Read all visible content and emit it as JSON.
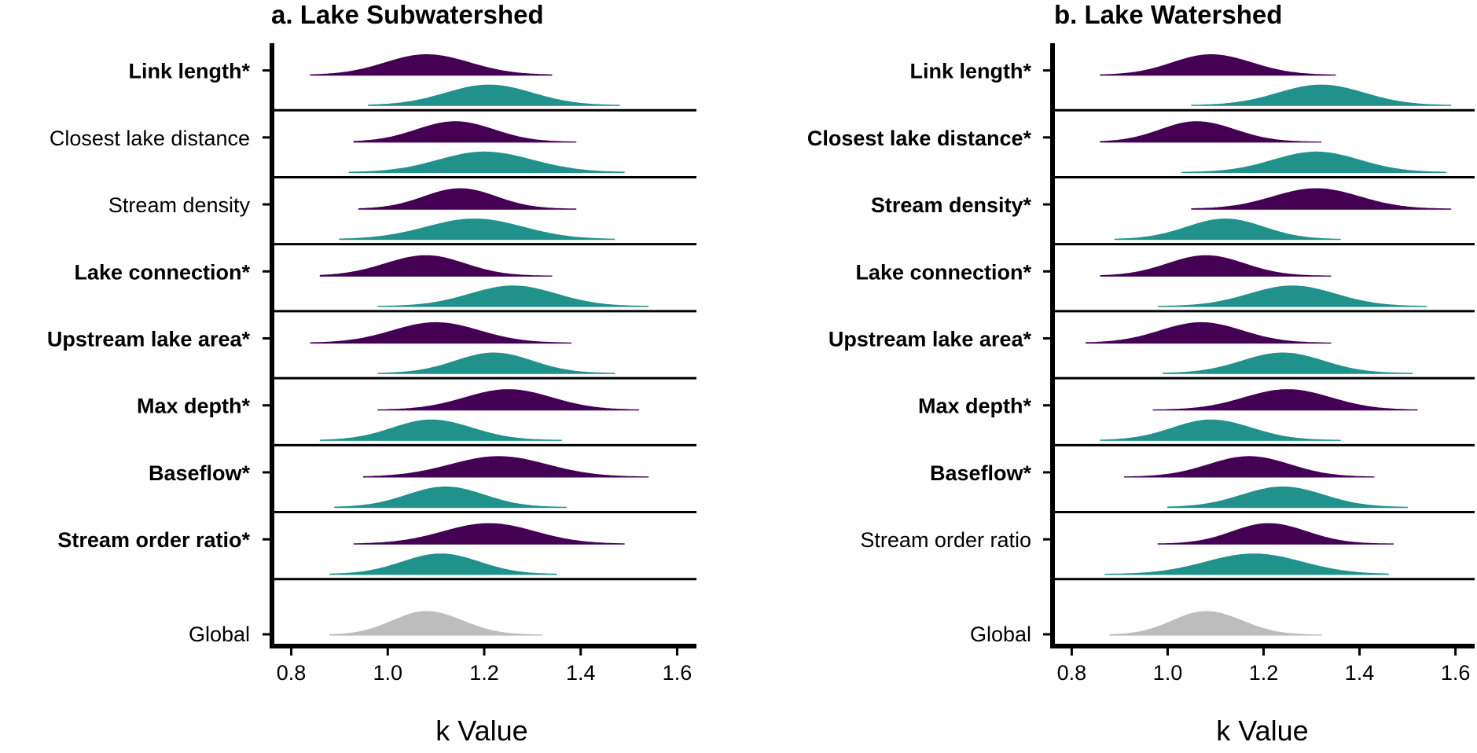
{
  "colors": {
    "purple": "#440154",
    "teal": "#21918c",
    "gray": "#bdbdbd",
    "axis": "#000000"
  },
  "chart_data": [
    {
      "type": "ridgeline",
      "title": "a. Lake Subwatershed",
      "xlabel": "k Value",
      "xlim": [
        0.76,
        1.64
      ],
      "xticks": [
        "0.8",
        "1.0",
        "1.2",
        "1.4",
        "1.6"
      ],
      "categories": [
        {
          "label": "Link length*",
          "bold": true,
          "densities": [
            {
              "color": "purple",
              "min": 0.84,
              "max": 1.34,
              "peak": 1.08,
              "sd_left": 0.085,
              "sd_right": 0.09
            },
            {
              "color": "teal",
              "min": 0.96,
              "max": 1.48,
              "peak": 1.21,
              "sd_left": 0.09,
              "sd_right": 0.09
            }
          ]
        },
        {
          "label": "Closest lake distance",
          "bold": false,
          "densities": [
            {
              "color": "purple",
              "min": 0.93,
              "max": 1.39,
              "peak": 1.14,
              "sd_left": 0.08,
              "sd_right": 0.08
            },
            {
              "color": "teal",
              "min": 0.92,
              "max": 1.49,
              "peak": 1.2,
              "sd_left": 0.095,
              "sd_right": 0.1
            }
          ]
        },
        {
          "label": "Stream density",
          "bold": false,
          "densities": [
            {
              "color": "purple",
              "min": 0.94,
              "max": 1.39,
              "peak": 1.15,
              "sd_left": 0.075,
              "sd_right": 0.075
            },
            {
              "color": "teal",
              "min": 0.9,
              "max": 1.47,
              "peak": 1.18,
              "sd_left": 0.1,
              "sd_right": 0.1
            }
          ]
        },
        {
          "label": "Lake connection*",
          "bold": true,
          "densities": [
            {
              "color": "purple",
              "min": 0.86,
              "max": 1.34,
              "peak": 1.08,
              "sd_left": 0.085,
              "sd_right": 0.08
            },
            {
              "color": "teal",
              "min": 0.98,
              "max": 1.54,
              "peak": 1.26,
              "sd_left": 0.09,
              "sd_right": 0.09
            }
          ]
        },
        {
          "label": "Upstream lake area*",
          "bold": true,
          "densities": [
            {
              "color": "purple",
              "min": 0.84,
              "max": 1.38,
              "peak": 1.1,
              "sd_left": 0.09,
              "sd_right": 0.09
            },
            {
              "color": "teal",
              "min": 0.98,
              "max": 1.47,
              "peak": 1.22,
              "sd_left": 0.08,
              "sd_right": 0.08
            }
          ]
        },
        {
          "label": "Max depth*",
          "bold": true,
          "densities": [
            {
              "color": "purple",
              "min": 0.98,
              "max": 1.52,
              "peak": 1.25,
              "sd_left": 0.09,
              "sd_right": 0.09
            },
            {
              "color": "teal",
              "min": 0.86,
              "max": 1.36,
              "peak": 1.09,
              "sd_left": 0.08,
              "sd_right": 0.085
            }
          ]
        },
        {
          "label": "Baseflow*",
          "bold": true,
          "densities": [
            {
              "color": "purple",
              "min": 0.95,
              "max": 1.54,
              "peak": 1.23,
              "sd_left": 0.1,
              "sd_right": 0.1
            },
            {
              "color": "teal",
              "min": 0.89,
              "max": 1.37,
              "peak": 1.12,
              "sd_left": 0.08,
              "sd_right": 0.08
            }
          ]
        },
        {
          "label": "Stream order ratio*",
          "bold": true,
          "densities": [
            {
              "color": "purple",
              "min": 0.93,
              "max": 1.49,
              "peak": 1.21,
              "sd_left": 0.095,
              "sd_right": 0.095
            },
            {
              "color": "teal",
              "min": 0.88,
              "max": 1.35,
              "peak": 1.11,
              "sd_left": 0.08,
              "sd_right": 0.08
            }
          ]
        },
        {
          "label": "Global",
          "bold": false,
          "densities": [
            {
              "color": "gray",
              "min": 0.88,
              "max": 1.32,
              "peak": 1.08,
              "sd_left": 0.07,
              "sd_right": 0.075
            }
          ]
        }
      ]
    },
    {
      "type": "ridgeline",
      "title": "b. Lake Watershed",
      "xlabel": "k Value",
      "xlim": [
        0.76,
        1.64
      ],
      "xticks": [
        "0.8",
        "1.0",
        "1.2",
        "1.4",
        "1.6"
      ],
      "categories": [
        {
          "label": "Link length*",
          "bold": true,
          "densities": [
            {
              "color": "purple",
              "min": 0.86,
              "max": 1.35,
              "peak": 1.09,
              "sd_left": 0.08,
              "sd_right": 0.085
            },
            {
              "color": "teal",
              "min": 1.05,
              "max": 1.59,
              "peak": 1.32,
              "sd_left": 0.09,
              "sd_right": 0.09
            }
          ]
        },
        {
          "label": "Closest lake distance*",
          "bold": true,
          "densities": [
            {
              "color": "purple",
              "min": 0.86,
              "max": 1.32,
              "peak": 1.06,
              "sd_left": 0.075,
              "sd_right": 0.08
            },
            {
              "color": "teal",
              "min": 1.03,
              "max": 1.58,
              "peak": 1.31,
              "sd_left": 0.09,
              "sd_right": 0.09
            }
          ]
        },
        {
          "label": "Stream density*",
          "bold": true,
          "densities": [
            {
              "color": "purple",
              "min": 1.05,
              "max": 1.59,
              "peak": 1.31,
              "sd_left": 0.09,
              "sd_right": 0.09
            },
            {
              "color": "teal",
              "min": 0.89,
              "max": 1.36,
              "peak": 1.12,
              "sd_left": 0.08,
              "sd_right": 0.08
            }
          ]
        },
        {
          "label": "Lake connection*",
          "bold": true,
          "densities": [
            {
              "color": "purple",
              "min": 0.86,
              "max": 1.34,
              "peak": 1.08,
              "sd_left": 0.08,
              "sd_right": 0.08
            },
            {
              "color": "teal",
              "min": 0.98,
              "max": 1.54,
              "peak": 1.26,
              "sd_left": 0.09,
              "sd_right": 0.09
            }
          ]
        },
        {
          "label": "Upstream lake area*",
          "bold": true,
          "densities": [
            {
              "color": "purple",
              "min": 0.83,
              "max": 1.34,
              "peak": 1.07,
              "sd_left": 0.085,
              "sd_right": 0.085
            },
            {
              "color": "teal",
              "min": 0.99,
              "max": 1.51,
              "peak": 1.24,
              "sd_left": 0.085,
              "sd_right": 0.085
            }
          ]
        },
        {
          "label": "Max depth*",
          "bold": true,
          "densities": [
            {
              "color": "purple",
              "min": 0.97,
              "max": 1.52,
              "peak": 1.25,
              "sd_left": 0.09,
              "sd_right": 0.09
            },
            {
              "color": "teal",
              "min": 0.86,
              "max": 1.36,
              "peak": 1.09,
              "sd_left": 0.08,
              "sd_right": 0.085
            }
          ]
        },
        {
          "label": "Baseflow*",
          "bold": true,
          "densities": [
            {
              "color": "purple",
              "min": 0.91,
              "max": 1.43,
              "peak": 1.17,
              "sd_left": 0.085,
              "sd_right": 0.085
            },
            {
              "color": "teal",
              "min": 1.0,
              "max": 1.5,
              "peak": 1.24,
              "sd_left": 0.085,
              "sd_right": 0.085
            }
          ]
        },
        {
          "label": "Stream order ratio",
          "bold": false,
          "densities": [
            {
              "color": "purple",
              "min": 0.98,
              "max": 1.47,
              "peak": 1.21,
              "sd_left": 0.075,
              "sd_right": 0.08
            },
            {
              "color": "teal",
              "min": 0.87,
              "max": 1.46,
              "peak": 1.18,
              "sd_left": 0.1,
              "sd_right": 0.1
            }
          ]
        },
        {
          "label": "Global",
          "bold": false,
          "densities": [
            {
              "color": "gray",
              "min": 0.88,
              "max": 1.32,
              "peak": 1.08,
              "sd_left": 0.07,
              "sd_right": 0.075
            }
          ]
        }
      ]
    }
  ]
}
